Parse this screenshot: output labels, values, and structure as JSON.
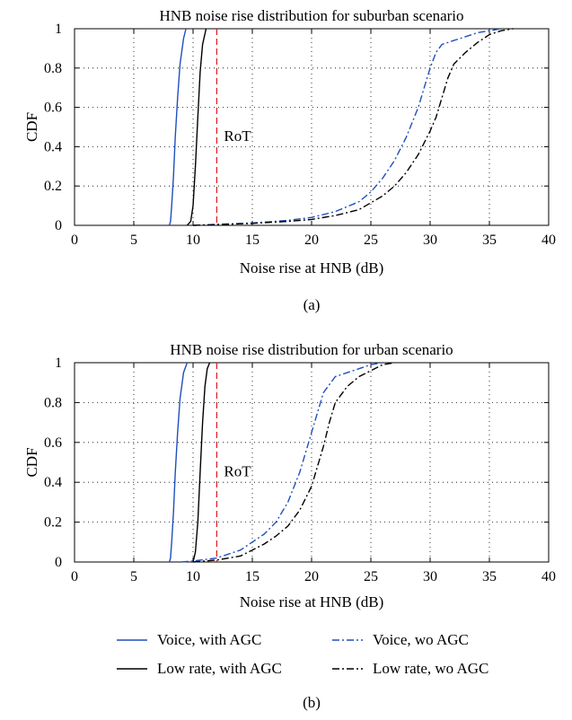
{
  "chart_data": [
    {
      "id": "a",
      "type": "line",
      "title": "HNB noise rise distribution for suburban scenario",
      "xlabel": "Noise rise at HNB (dB)",
      "ylabel": "CDF",
      "caption": "(a)",
      "xlim": [
        0,
        40
      ],
      "ylim": [
        0,
        1
      ],
      "xticks": [
        "0",
        "5",
        "10",
        "15",
        "20",
        "25",
        "30",
        "35",
        "40"
      ],
      "yticks": [
        "0",
        "0.2",
        "0.4",
        "0.6",
        "0.8",
        "1"
      ],
      "grid": true,
      "annotation": "RoT",
      "rot_line_x": 12,
      "series": [
        {
          "name": "Voice, with AGC",
          "color": "#1f4fbf",
          "dash": "solid",
          "points": [
            [
              8.0,
              0
            ],
            [
              8.1,
              0.02
            ],
            [
              8.2,
              0.1
            ],
            [
              8.35,
              0.25
            ],
            [
              8.5,
              0.45
            ],
            [
              8.7,
              0.65
            ],
            [
              8.9,
              0.82
            ],
            [
              9.2,
              0.95
            ],
            [
              9.4,
              1
            ]
          ]
        },
        {
          "name": "Low rate, with AGC",
          "color": "#000000",
          "dash": "solid",
          "points": [
            [
              9.5,
              0
            ],
            [
              9.8,
              0.02
            ],
            [
              10.0,
              0.1
            ],
            [
              10.2,
              0.3
            ],
            [
              10.4,
              0.55
            ],
            [
              10.6,
              0.78
            ],
            [
              10.8,
              0.92
            ],
            [
              11.1,
              1
            ]
          ]
        },
        {
          "name": "Voice, wo AGC",
          "color": "#1f4fbf",
          "dash": "dashdot",
          "points": [
            [
              10,
              0
            ],
            [
              12,
              0.005
            ],
            [
              15,
              0.012
            ],
            [
              18,
              0.025
            ],
            [
              20,
              0.04
            ],
            [
              22,
              0.07
            ],
            [
              24,
              0.12
            ],
            [
              25,
              0.17
            ],
            [
              26,
              0.24
            ],
            [
              27,
              0.33
            ],
            [
              28,
              0.45
            ],
            [
              29,
              0.6
            ],
            [
              29.5,
              0.7
            ],
            [
              30,
              0.8
            ],
            [
              30.5,
              0.88
            ],
            [
              31,
              0.92
            ],
            [
              32,
              0.94
            ],
            [
              33,
              0.96
            ],
            [
              34,
              0.98
            ],
            [
              35,
              0.99
            ],
            [
              36,
              1
            ]
          ]
        },
        {
          "name": "Low rate, wo AGC",
          "color": "#000000",
          "dash": "dashdot",
          "points": [
            [
              10,
              0
            ],
            [
              12,
              0.003
            ],
            [
              15,
              0.01
            ],
            [
              18,
              0.02
            ],
            [
              20,
              0.03
            ],
            [
              22,
              0.05
            ],
            [
              24,
              0.08
            ],
            [
              26,
              0.15
            ],
            [
              27,
              0.2
            ],
            [
              28,
              0.27
            ],
            [
              29,
              0.36
            ],
            [
              30,
              0.48
            ],
            [
              30.5,
              0.55
            ],
            [
              31,
              0.65
            ],
            [
              31.5,
              0.75
            ],
            [
              32,
              0.82
            ],
            [
              33,
              0.88
            ],
            [
              34,
              0.93
            ],
            [
              35,
              0.97
            ],
            [
              36,
              0.99
            ],
            [
              37,
              1
            ]
          ]
        }
      ]
    },
    {
      "id": "b",
      "type": "line",
      "title": "HNB noise rise distribution for urban scenario",
      "xlabel": "Noise rise at HNB (dB)",
      "ylabel": "CDF",
      "caption": "(b)",
      "xlim": [
        0,
        40
      ],
      "ylim": [
        0,
        1
      ],
      "xticks": [
        "0",
        "5",
        "10",
        "15",
        "20",
        "25",
        "30",
        "35",
        "40"
      ],
      "yticks": [
        "0",
        "0.2",
        "0.4",
        "0.6",
        "0.8",
        "1"
      ],
      "grid": true,
      "annotation": "RoT",
      "rot_line_x": 12,
      "series": [
        {
          "name": "Voice, with AGC",
          "color": "#1f4fbf",
          "dash": "solid",
          "points": [
            [
              8.0,
              0
            ],
            [
              8.1,
              0.02
            ],
            [
              8.2,
              0.1
            ],
            [
              8.35,
              0.25
            ],
            [
              8.5,
              0.45
            ],
            [
              8.7,
              0.65
            ],
            [
              8.9,
              0.82
            ],
            [
              9.2,
              0.95
            ],
            [
              9.5,
              1
            ]
          ]
        },
        {
          "name": "Low rate, with AGC",
          "color": "#000000",
          "dash": "solid",
          "points": [
            [
              10.0,
              0
            ],
            [
              10.2,
              0.05
            ],
            [
              10.4,
              0.2
            ],
            [
              10.6,
              0.45
            ],
            [
              10.8,
              0.7
            ],
            [
              11.0,
              0.88
            ],
            [
              11.2,
              0.97
            ],
            [
              11.4,
              1
            ]
          ]
        },
        {
          "name": "Voice, wo AGC",
          "color": "#1f4fbf",
          "dash": "dashdot",
          "points": [
            [
              9,
              0
            ],
            [
              10,
              0.005
            ],
            [
              12,
              0.02
            ],
            [
              14,
              0.06
            ],
            [
              15,
              0.1
            ],
            [
              16,
              0.14
            ],
            [
              17,
              0.2
            ],
            [
              18,
              0.3
            ],
            [
              19,
              0.45
            ],
            [
              20,
              0.65
            ],
            [
              20.5,
              0.75
            ],
            [
              21,
              0.85
            ],
            [
              22,
              0.93
            ],
            [
              23,
              0.95
            ],
            [
              24,
              0.97
            ],
            [
              25,
              0.99
            ],
            [
              26,
              1
            ]
          ]
        },
        {
          "name": "Low rate, wo AGC",
          "color": "#000000",
          "dash": "dashdot",
          "points": [
            [
              10,
              0
            ],
            [
              12,
              0.01
            ],
            [
              14,
              0.03
            ],
            [
              15,
              0.06
            ],
            [
              16,
              0.09
            ],
            [
              17,
              0.13
            ],
            [
              18,
              0.18
            ],
            [
              19,
              0.26
            ],
            [
              20,
              0.38
            ],
            [
              20.5,
              0.48
            ],
            [
              21,
              0.58
            ],
            [
              21.5,
              0.7
            ],
            [
              22,
              0.8
            ],
            [
              23,
              0.88
            ],
            [
              24,
              0.93
            ],
            [
              25,
              0.96
            ],
            [
              26,
              0.99
            ],
            [
              27,
              1
            ]
          ]
        }
      ]
    }
  ],
  "legend": {
    "items": [
      {
        "label": "Voice, with AGC",
        "color": "#1f4fbf",
        "dash": "solid"
      },
      {
        "label": "Voice, wo AGC",
        "color": "#1f4fbf",
        "dash": "dashdot"
      },
      {
        "label": "Low rate, with AGC",
        "color": "#000000",
        "dash": "solid"
      },
      {
        "label": "Low rate, wo AGC",
        "color": "#000000",
        "dash": "dashdot"
      }
    ]
  }
}
